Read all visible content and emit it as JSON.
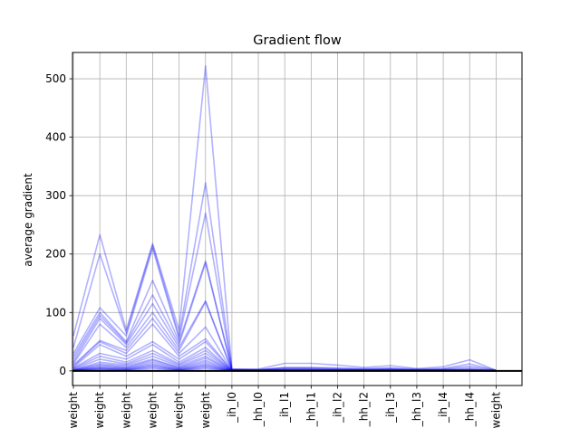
{
  "chart_data": {
    "type": "line",
    "title": "Gradient flow",
    "xlabel": "",
    "ylabel": "average gradient",
    "ylim": [
      -25,
      545
    ],
    "yticks": [
      0,
      100,
      200,
      300,
      400,
      500
    ],
    "grid": true,
    "categories": [
      "weight",
      "weight",
      "weight",
      "weight",
      "weight",
      "weight",
      "_ih_l0",
      "_hh_l0",
      "_ih_l1",
      "_hh_l1",
      "_ih_l2",
      "_hh_l2",
      "_ih_l3",
      "_hh_l3",
      "_ih_l4",
      "_hh_l4",
      "weight"
    ],
    "line_color": "#0000ff",
    "series": [
      {
        "values": [
          60,
          233,
          70,
          218,
          70,
          522,
          3,
          3,
          13,
          13,
          10,
          6,
          9,
          4,
          7,
          19,
          1
        ]
      },
      {
        "values": [
          40,
          200,
          65,
          215,
          60,
          322,
          3,
          2,
          6,
          6,
          5,
          4,
          5,
          3,
          4,
          12,
          1
        ]
      },
      {
        "values": [
          30,
          108,
          60,
          210,
          55,
          270,
          2,
          2,
          5,
          5,
          4,
          3,
          4,
          2,
          3,
          8,
          1
        ]
      },
      {
        "values": [
          25,
          100,
          50,
          155,
          50,
          188,
          2,
          2,
          4,
          4,
          3,
          2,
          3,
          2,
          2,
          5,
          0.5
        ]
      },
      {
        "values": [
          20,
          95,
          48,
          130,
          45,
          185,
          2,
          1,
          3,
          3,
          2,
          2,
          2,
          1,
          2,
          3,
          0.5
        ]
      },
      {
        "values": [
          15,
          90,
          45,
          115,
          40,
          120,
          1,
          1,
          2,
          2,
          2,
          1,
          2,
          1,
          1,
          2,
          0.5
        ]
      },
      {
        "values": [
          12,
          80,
          40,
          100,
          35,
          118,
          1,
          1,
          2,
          2,
          1,
          1,
          1,
          1,
          1,
          2,
          0.5
        ]
      },
      {
        "values": [
          10,
          52,
          35,
          90,
          30,
          75,
          1,
          1,
          1,
          1,
          1,
          1,
          1,
          1,
          1,
          1,
          0.5
        ]
      },
      {
        "values": [
          8,
          50,
          30,
          80,
          25,
          55,
          1,
          1,
          1,
          1,
          1,
          1,
          1,
          1,
          1,
          1,
          0.5
        ]
      },
      {
        "values": [
          6,
          45,
          25,
          50,
          20,
          50,
          0.5,
          0.5,
          1,
          1,
          1,
          1,
          1,
          1,
          1,
          1,
          0.3
        ]
      },
      {
        "values": [
          5,
          30,
          20,
          45,
          15,
          40,
          0.5,
          0.5,
          1,
          1,
          1,
          1,
          1,
          1,
          1,
          1,
          0.3
        ]
      },
      {
        "values": [
          4,
          25,
          15,
          35,
          12,
          35,
          0.5,
          0.5,
          0.5,
          0.5,
          0.5,
          0.5,
          0.5,
          0.5,
          0.5,
          0.5,
          0.3
        ]
      },
      {
        "values": [
          3,
          20,
          12,
          30,
          10,
          30,
          0.5,
          0.5,
          0.5,
          0.5,
          0.5,
          0.5,
          0.5,
          0.5,
          0.5,
          0.5,
          0.2
        ]
      },
      {
        "values": [
          2,
          15,
          10,
          25,
          8,
          25,
          0.3,
          0.3,
          0.5,
          0.5,
          0.5,
          0.5,
          0.5,
          0.5,
          0.5,
          0.5,
          0.2
        ]
      },
      {
        "values": [
          2,
          12,
          8,
          20,
          6,
          22,
          0.3,
          0.3,
          0.3,
          0.3,
          0.3,
          0.3,
          0.3,
          0.3,
          0.3,
          0.3,
          0.2
        ]
      },
      {
        "values": [
          1,
          10,
          6,
          18,
          5,
          18,
          0.3,
          0.3,
          0.3,
          0.3,
          0.3,
          0.3,
          0.3,
          0.3,
          0.3,
          0.3,
          0.1
        ]
      },
      {
        "values": [
          1,
          8,
          5,
          15,
          4,
          15,
          0.2,
          0.2,
          0.3,
          0.3,
          0.3,
          0.3,
          0.3,
          0.3,
          0.3,
          0.3,
          0.1
        ]
      },
      {
        "values": [
          1,
          6,
          4,
          12,
          3,
          12,
          0.2,
          0.2,
          0.2,
          0.2,
          0.2,
          0.2,
          0.2,
          0.2,
          0.2,
          0.2,
          0.1
        ]
      },
      {
        "values": [
          0.5,
          5,
          3,
          10,
          2,
          10,
          0.1,
          0.1,
          0.2,
          0.2,
          0.2,
          0.2,
          0.2,
          0.2,
          0.2,
          0.2,
          0.1
        ]
      },
      {
        "values": [
          0.5,
          4,
          2,
          8,
          2,
          8,
          0.1,
          0.1,
          0.1,
          0.1,
          0.1,
          0.1,
          0.1,
          0.1,
          0.1,
          0.1,
          0.05
        ]
      },
      {
        "values": [
          0.3,
          3,
          2,
          6,
          1,
          6,
          0.1,
          0.1,
          0.1,
          0.1,
          0.1,
          0.1,
          0.1,
          0.1,
          0.1,
          0.1,
          0.05
        ]
      },
      {
        "values": [
          0.2,
          2,
          1,
          4,
          1,
          4,
          0.05,
          0.05,
          0.1,
          0.1,
          0.1,
          0.1,
          0.1,
          0.1,
          0.1,
          0.1,
          0.05
        ]
      }
    ]
  }
}
